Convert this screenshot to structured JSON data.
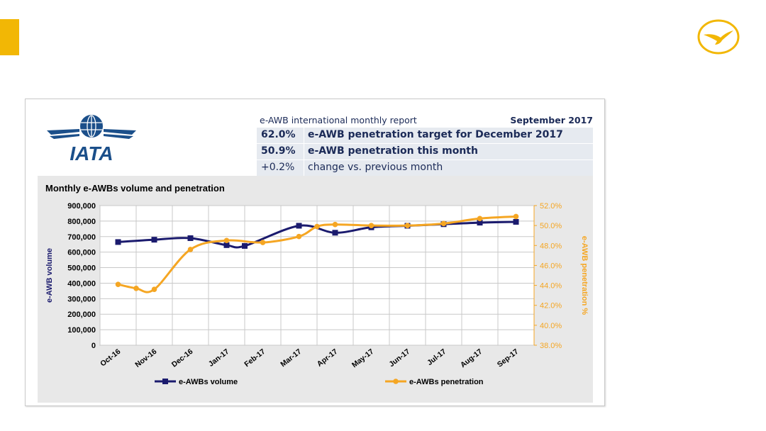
{
  "report": {
    "title": "e-AWB international monthly report",
    "date": "September 2017",
    "kpis": [
      {
        "value": "62.0%",
        "label": "e-AWB penetration target for December 2017",
        "bold": true
      },
      {
        "value": "50.9%",
        "label": "e-AWB penetration this month",
        "bold": true
      },
      {
        "value": "+0.2%",
        "label": "change vs. previous month",
        "bold": false
      }
    ]
  },
  "logos": {
    "iata": "IATA",
    "brand_icon": "crane-logo-icon"
  },
  "colors": {
    "accent": "#f2b705",
    "volume": "#1b1b6e",
    "penetration": "#f5a623",
    "text_dark": "#1b2a57"
  },
  "chart_data": {
    "type": "line",
    "title": "Monthly e-AWBs volume and penetration",
    "categories": [
      "Oct-16",
      "Nov-16",
      "Dec-16",
      "Jan-17",
      "Feb-17",
      "Mar-17",
      "Apr-17",
      "May-17",
      "Jun-17",
      "Jul-17",
      "Aug-17",
      "Sep-17"
    ],
    "ylabel": "e-AWB volume",
    "y2label": "e-AWB penetration %",
    "ylim": [
      0,
      900000
    ],
    "y2lim": [
      38.0,
      52.0
    ],
    "yticks": [
      "900,000",
      "800,000",
      "700,000",
      "600,000",
      "500,000",
      "400,000",
      "300,000",
      "200,000",
      "100,000",
      "0"
    ],
    "y2ticks": [
      "52.0%",
      "50.0%",
      "48.0%",
      "46.0%",
      "44.0%",
      "42.0%",
      "40.0%",
      "38.0%"
    ],
    "grid": true,
    "legend_position": "bottom",
    "series": [
      {
        "name": "e-AWBs volume",
        "axis": "left",
        "color": "#1b1b6e",
        "marker": "square",
        "x": [
          0,
          1,
          2,
          3,
          3.5,
          5,
          6,
          7,
          8,
          9,
          10,
          11
        ],
        "values": [
          665000,
          680000,
          690000,
          645000,
          640000,
          770000,
          725000,
          760000,
          770000,
          780000,
          790000,
          795000
        ]
      },
      {
        "name": "e-AWBs penetration",
        "axis": "right",
        "color": "#f5a623",
        "marker": "circle",
        "x": [
          0,
          0.5,
          1,
          2,
          3,
          4,
          5,
          5.5,
          6,
          7,
          8,
          9,
          10,
          11
        ],
        "values": [
          44.1,
          43.7,
          43.6,
          47.6,
          48.5,
          48.3,
          48.9,
          49.9,
          50.1,
          50.0,
          50.0,
          50.2,
          50.7,
          50.9
        ]
      }
    ]
  }
}
